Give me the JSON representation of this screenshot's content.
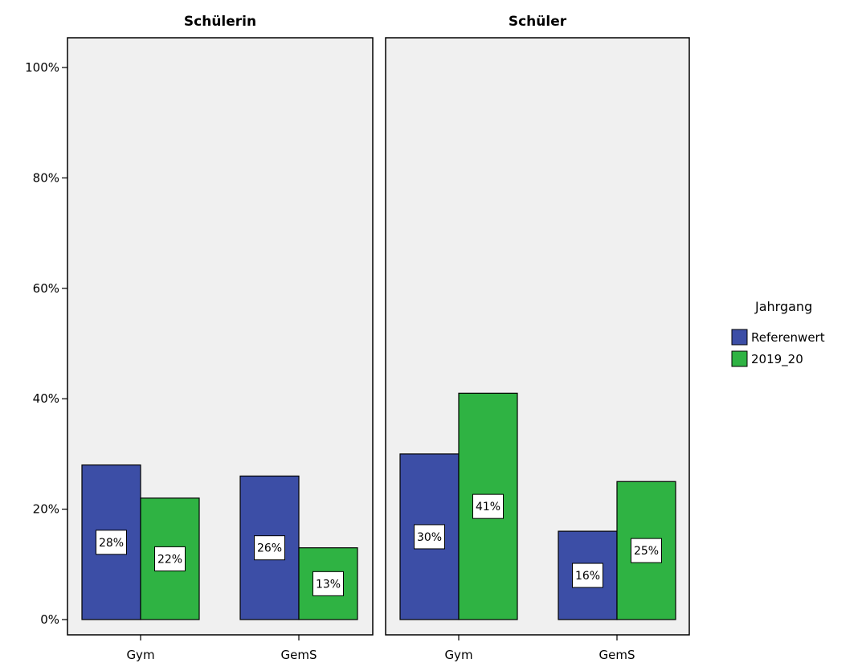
{
  "chart_data": {
    "type": "bar",
    "panels": [
      {
        "title": "Schülerin",
        "categories": [
          "Gym",
          "GemS"
        ],
        "series": [
          {
            "name": "Referenwert",
            "values": [
              28,
              26
            ],
            "labels": [
              "28%",
              "26%"
            ]
          },
          {
            "name": "2019_20",
            "values": [
              22,
              13
            ],
            "labels": [
              "22%",
              "13%"
            ]
          }
        ]
      },
      {
        "title": "Schüler",
        "categories": [
          "Gym",
          "GemS"
        ],
        "series": [
          {
            "name": "Referenwert",
            "values": [
              30,
              16
            ],
            "labels": [
              "30%",
              "16%"
            ]
          },
          {
            "name": "2019_20",
            "values": [
              41,
              25
            ],
            "labels": [
              "41%",
              "25%"
            ]
          }
        ]
      }
    ],
    "y_ticks": [
      "0%",
      "20%",
      "40%",
      "60%",
      "80%",
      "100%"
    ],
    "ylim": [
      0,
      100
    ],
    "legend": {
      "title": "Jahrgang",
      "position": "right",
      "entries": [
        "Referenwert",
        "2019_20"
      ]
    },
    "colors": {
      "Referenwert": "#3c4ea6",
      "2019_20": "#2fb343",
      "panel_background": "#f0f0f0"
    },
    "grid": false
  }
}
